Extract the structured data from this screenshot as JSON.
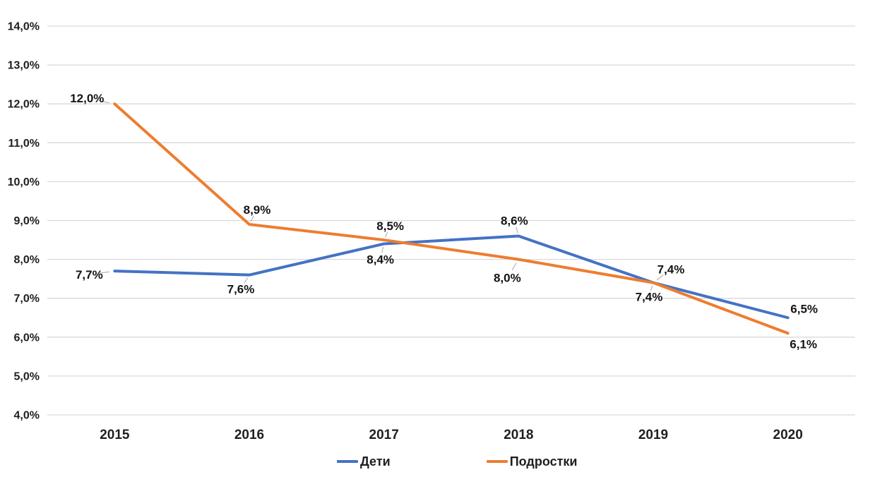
{
  "chart_data": {
    "type": "line",
    "title": "",
    "categories": [
      "2015",
      "2016",
      "2017",
      "2018",
      "2019",
      "2020"
    ],
    "series": [
      {
        "name": "Дети",
        "color": "#4472C4",
        "values": [
          7.7,
          7.6,
          8.4,
          8.6,
          7.4,
          6.5
        ],
        "labels": [
          "7,7%",
          "7,6%",
          "8,4%",
          "8,6%",
          "7,4%",
          "6,5%"
        ],
        "label_offsets": [
          [
            -36,
            5
          ],
          [
            -12,
            20
          ],
          [
            -5,
            22
          ],
          [
            -6,
            -22
          ],
          [
            25,
            -19
          ],
          [
            23,
            -13
          ]
        ],
        "label_leaders": [
          true,
          true,
          true,
          true,
          true,
          false
        ]
      },
      {
        "name": "Подростки",
        "color": "#ED7D31",
        "values": [
          12.0,
          8.9,
          8.5,
          8.0,
          7.4,
          6.1
        ],
        "labels": [
          "12,0%",
          "8,9%",
          "8,5%",
          "8,0%",
          "7,4%",
          "6,1%"
        ],
        "label_offsets": [
          [
            -39,
            -8
          ],
          [
            11,
            -21
          ],
          [
            9,
            -20
          ],
          [
            -16,
            26
          ],
          [
            -6,
            20
          ],
          [
            22,
            15
          ]
        ],
        "label_leaders": [
          true,
          true,
          true,
          true,
          true,
          false
        ]
      }
    ],
    "y_axis": {
      "min": 4,
      "max": 14,
      "step": 1,
      "tick_labels": [
        "4,0%",
        "5,0%",
        "6,0%",
        "7,0%",
        "8,0%",
        "9,0%",
        "10,0%",
        "11,0%",
        "12,0%",
        "13,0%",
        "14,0%"
      ]
    },
    "x_axis": {
      "tick_labels": [
        "2015",
        "2016",
        "2017",
        "2018",
        "2019",
        "2020"
      ]
    },
    "grid": true,
    "gridline_color": "#d9d9d9",
    "leader_color": "#a6a6a6",
    "line_width": 4,
    "legend": {
      "position": "bottom",
      "items": [
        "Дети",
        "Подростки"
      ]
    }
  }
}
